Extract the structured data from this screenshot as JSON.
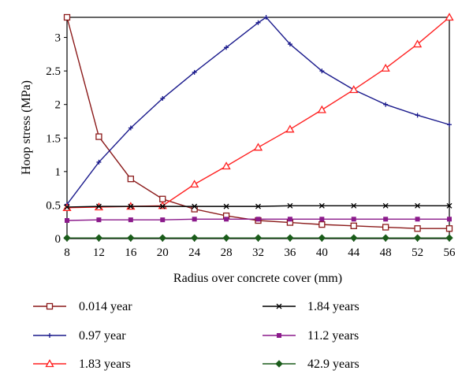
{
  "chart_data": {
    "type": "line",
    "title": "",
    "xlabel": "Radius over concrete cover (mm)",
    "ylabel": "Hoop stress (MPa)",
    "xlim": [
      8,
      56
    ],
    "ylim": [
      0,
      3.3
    ],
    "x_ticks": [
      "8",
      "12",
      "16",
      "20",
      "24",
      "28",
      "32",
      "36",
      "40",
      "44",
      "48",
      "52",
      "56"
    ],
    "y_ticks": [
      "0",
      "0.5",
      "1",
      "1.5",
      "2",
      "2.5",
      "3"
    ],
    "grid": false,
    "legend_position": "bottom",
    "series": [
      {
        "name": "0.014 year",
        "color": "#8B1A1A",
        "marker": "square-open",
        "x": [
          8,
          12,
          16,
          20,
          24,
          28,
          32,
          36,
          40,
          44,
          48,
          52,
          56
        ],
        "y": [
          3.3,
          1.52,
          0.89,
          0.59,
          0.44,
          0.34,
          0.27,
          0.24,
          0.21,
          0.19,
          0.17,
          0.15,
          0.15
        ]
      },
      {
        "name": "0.97 year",
        "color": "#1a1a8c",
        "marker": "plus",
        "x": [
          8,
          12,
          16,
          20,
          24,
          28,
          32,
          33,
          36,
          40,
          44,
          48,
          52,
          56
        ],
        "y": [
          0.51,
          1.14,
          1.65,
          2.09,
          2.48,
          2.85,
          3.22,
          3.3,
          2.9,
          2.5,
          2.22,
          2.0,
          1.84,
          1.7
        ]
      },
      {
        "name": "1.83 years",
        "color": "#ff2020",
        "marker": "triangle-open",
        "x": [
          8,
          12,
          16,
          20,
          24,
          28,
          32,
          36,
          40,
          44,
          48,
          52,
          56
        ],
        "y": [
          0.46,
          0.47,
          0.48,
          0.49,
          0.81,
          1.08,
          1.36,
          1.63,
          1.92,
          2.22,
          2.54,
          2.9,
          3.3
        ]
      },
      {
        "name": "1.84 years",
        "color": "#000000",
        "marker": "x",
        "x": [
          8,
          12,
          16,
          20,
          24,
          28,
          32,
          36,
          40,
          44,
          48,
          52,
          56
        ],
        "y": [
          0.47,
          0.48,
          0.48,
          0.48,
          0.48,
          0.48,
          0.48,
          0.49,
          0.49,
          0.49,
          0.49,
          0.49,
          0.49
        ]
      },
      {
        "name": "11.2 years",
        "color": "#8B1A8B",
        "marker": "square-filled",
        "x": [
          8,
          12,
          16,
          20,
          24,
          28,
          32,
          36,
          40,
          44,
          48,
          52,
          56
        ],
        "y": [
          0.27,
          0.28,
          0.28,
          0.28,
          0.29,
          0.29,
          0.29,
          0.29,
          0.29,
          0.29,
          0.29,
          0.29,
          0.29
        ]
      },
      {
        "name": "42.9 years",
        "color": "#1a5c1a",
        "marker": "diamond",
        "x": [
          8,
          12,
          16,
          20,
          24,
          28,
          32,
          36,
          40,
          44,
          48,
          52,
          56
        ],
        "y": [
          0.01,
          0.01,
          0.01,
          0.01,
          0.01,
          0.01,
          0.01,
          0.01,
          0.01,
          0.01,
          0.01,
          0.01,
          0.01
        ]
      }
    ]
  }
}
